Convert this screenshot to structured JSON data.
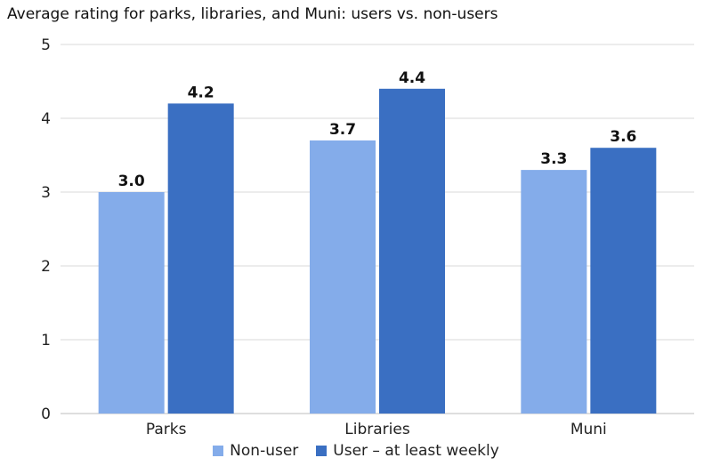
{
  "chart_data": {
    "type": "bar",
    "title": "Average rating for parks, libraries, and Muni: users vs. non-users",
    "categories": [
      "Parks",
      "Libraries",
      "Muni"
    ],
    "series": [
      {
        "name": "Non-user",
        "values": [
          3.0,
          3.7,
          3.3
        ],
        "color": "#84acea",
        "labels": [
          "3.0",
          "3.7",
          "3.3"
        ]
      },
      {
        "name": "User – at least weekly",
        "values": [
          4.2,
          4.4,
          3.6
        ],
        "color": "#3a6fc2",
        "labels": [
          "4.2",
          "4.4",
          "3.6"
        ]
      }
    ],
    "ylim": [
      0,
      5
    ],
    "yticks": [
      "0",
      "1",
      "2",
      "3",
      "4",
      "5"
    ],
    "grid": true,
    "legend_position": "bottom"
  }
}
